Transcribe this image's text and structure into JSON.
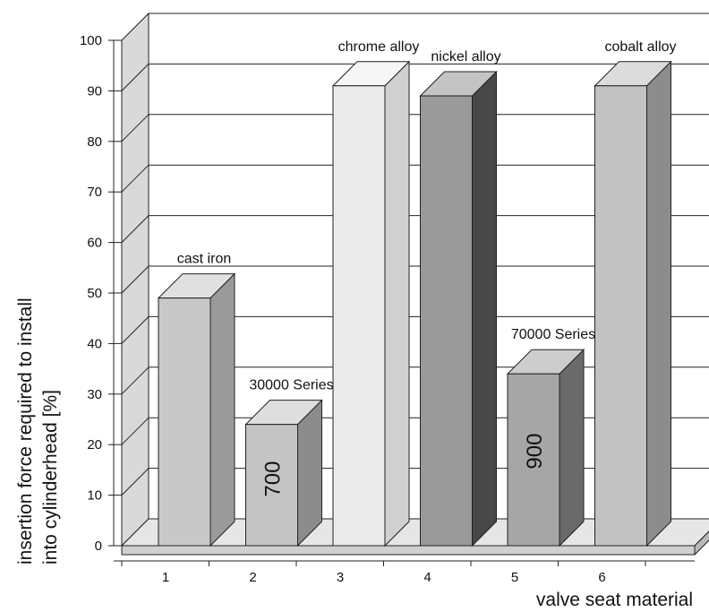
{
  "chart_data": {
    "type": "bar",
    "title": "",
    "xlabel": "valve seat material",
    "ylabel_lines": [
      "insertion force required to install",
      "into cylinderhead [%]"
    ],
    "ylim": [
      0,
      100
    ],
    "yticks": [
      "0",
      "10",
      "20",
      "30",
      "40",
      "50",
      "60",
      "70",
      "80",
      "90",
      "100"
    ],
    "categories": [
      "1",
      "2",
      "3",
      "4",
      "5",
      "6"
    ],
    "values": [
      49,
      24,
      91,
      89,
      34,
      91
    ],
    "bar_labels": [
      "cast iron",
      "30000 Series",
      "chrome alloy",
      "nickel alloy",
      "70000 Series",
      "cobalt alloy"
    ],
    "bar_inner_text": [
      "",
      "700",
      "",
      "",
      "900",
      ""
    ],
    "bar_colors": [
      {
        "front": "#c8c8c8",
        "side": "#9a9a9a",
        "top": "#e0e0e0"
      },
      {
        "front": "#c4c4c4",
        "side": "#8c8c8c",
        "top": "#dedede"
      },
      {
        "front": "#ebebeb",
        "side": "#d0d0d0",
        "top": "#f6f6f6"
      },
      {
        "front": "#9a9a9a",
        "side": "#484848",
        "top": "#c4c4c4"
      },
      {
        "front": "#a6a6a6",
        "side": "#6a6a6a",
        "top": "#cdcdcd"
      },
      {
        "front": "#c2c2c2",
        "side": "#8c8c8c",
        "top": "#dcdcdc"
      }
    ],
    "grid": true,
    "style": "3d"
  }
}
